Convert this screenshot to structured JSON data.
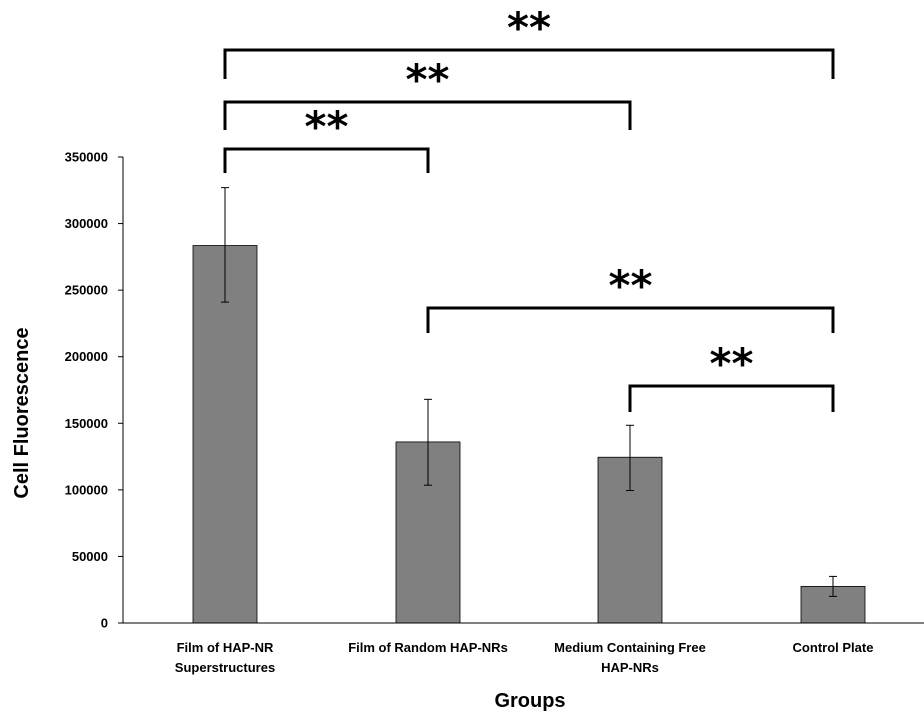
{
  "chart_data": {
    "type": "bar",
    "categories": [
      [
        "Film of HAP-NR",
        "Superstructures"
      ],
      [
        "Film of Random HAP-NRs"
      ],
      [
        "Medium Containing Free",
        "HAP-NRs"
      ],
      [
        "Control Plate"
      ]
    ],
    "values": [
      283500,
      136000,
      124500,
      27500
    ],
    "error_low": [
      241000,
      103500,
      99500,
      20000
    ],
    "error_high": [
      327000,
      168000,
      148500,
      35000
    ],
    "xlabel": "Groups",
    "ylabel": "Cell Fluorescence",
    "ylim": [
      0,
      350000
    ],
    "yticks": [
      0,
      50000,
      100000,
      150000,
      200000,
      250000,
      300000,
      350000
    ],
    "bar_color": "#808080",
    "grid": false,
    "significance": [
      {
        "from": 0,
        "to": 3,
        "label": "**"
      },
      {
        "from": 0,
        "to": 2,
        "label": "**"
      },
      {
        "from": 0,
        "to": 1,
        "label": "**"
      },
      {
        "from": 1,
        "to": 3,
        "label": "**"
      },
      {
        "from": 2,
        "to": 3,
        "label": "**"
      }
    ]
  }
}
